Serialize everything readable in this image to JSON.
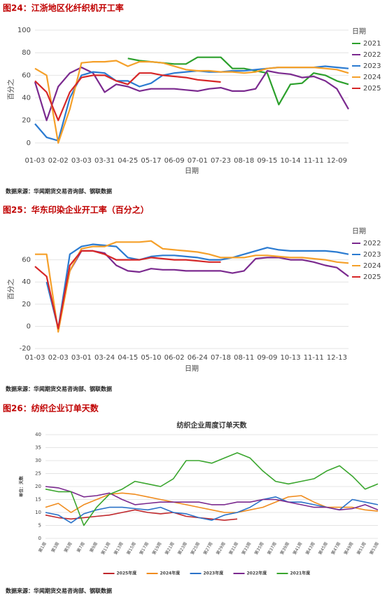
{
  "chart_data": [
    {
      "type": "line",
      "title": "图24：江浙地区化纤织机开工率",
      "source": "数据来源：华闻期货交易咨询部、钢联数据",
      "xlabel": "日期",
      "ylabel": "百分之",
      "legend_title": "日期",
      "legend": "right",
      "grid": true,
      "categories": [
        "01-03",
        null,
        "02-02",
        null,
        "03-03",
        null,
        "03-31",
        null,
        "04-25",
        null,
        "05-17",
        null,
        "06-09",
        null,
        "07-01",
        null,
        "07-23",
        null,
        "08-18",
        null,
        "09-15",
        null,
        "10-14",
        null,
        "11-11",
        null,
        "12-09",
        null
      ],
      "ylim": [
        -10,
        105
      ],
      "yticks": [
        0,
        20,
        40,
        60,
        80,
        100
      ],
      "series": [
        {
          "name": "2021",
          "color": "#2ca02c",
          "values": [
            null,
            null,
            null,
            null,
            null,
            null,
            null,
            null,
            75,
            73,
            72,
            71,
            70,
            70,
            76,
            76,
            76,
            66,
            66,
            64,
            62,
            34,
            52,
            53,
            62,
            60,
            55,
            52
          ]
        },
        {
          "name": "2022",
          "color": "#7b2a8f",
          "values": [
            54,
            20,
            50,
            62,
            67,
            62,
            45,
            52,
            50,
            46,
            48,
            48,
            48,
            47,
            46,
            48,
            49,
            46,
            46,
            48,
            64,
            62,
            61,
            58,
            59,
            55,
            48,
            30
          ]
        },
        {
          "name": "2023",
          "color": "#2b7bd1",
          "values": [
            17,
            5,
            2,
            40,
            60,
            63,
            62,
            55,
            55,
            50,
            53,
            60,
            62,
            63,
            64,
            63,
            63,
            64,
            64,
            65,
            66,
            67,
            67,
            67,
            67,
            68,
            67,
            66
          ]
        },
        {
          "name": "2024",
          "color": "#f5a02a",
          "values": [
            66,
            60,
            0,
            30,
            71,
            72,
            72,
            73,
            68,
            72,
            72,
            71,
            68,
            65,
            64,
            64,
            63,
            63,
            62,
            63,
            66,
            67,
            67,
            67,
            67,
            66,
            65,
            62
          ]
        },
        {
          "name": "2025",
          "color": "#d62728",
          "values": [
            55,
            45,
            20,
            45,
            58,
            60,
            60,
            55,
            52,
            62,
            62,
            60,
            59,
            58,
            56,
            55,
            54,
            null,
            null,
            null,
            null,
            null,
            null,
            null,
            null,
            null,
            null,
            null
          ]
        }
      ]
    },
    {
      "type": "line",
      "title": "图25：华东印染企业开工率（百分之）",
      "source": "数据来源：华闻期货交易咨询部、钢联数据",
      "xlabel": "日期",
      "ylabel": "百分之",
      "legend_title": "日期",
      "legend": "right",
      "grid": true,
      "categories": [
        "01-03",
        null,
        "02-03",
        null,
        "03-01",
        null,
        "03-24",
        null,
        "04-15",
        null,
        "05-10",
        null,
        "06-02",
        null,
        "06-24",
        null,
        "07-18",
        null,
        "08-11",
        null,
        "09-09",
        null,
        "10-13",
        null,
        "11-11",
        null,
        "12-13",
        null
      ],
      "ylim": [
        -25,
        92
      ],
      "yticks": [
        -20,
        0,
        20,
        40,
        60
      ],
      "series": [
        {
          "name": "2022",
          "color": "#7b2a8f",
          "values": [
            null,
            null,
            -2,
            50,
            68,
            68,
            66,
            55,
            50,
            49,
            52,
            51,
            51,
            50,
            50,
            50,
            50,
            48,
            50,
            61,
            62,
            62,
            60,
            60,
            58,
            55,
            53,
            45
          ]
        },
        {
          "name": "2023",
          "color": "#2b7bd1",
          "values": [
            null,
            40,
            -2,
            65,
            72,
            74,
            73,
            72,
            62,
            60,
            63,
            64,
            64,
            63,
            62,
            60,
            60,
            62,
            65,
            68,
            71,
            69,
            68,
            68,
            68,
            68,
            67,
            65
          ]
        },
        {
          "name": "2024",
          "color": "#f5a02a",
          "values": [
            65,
            65,
            -5,
            50,
            70,
            72,
            72,
            76,
            76,
            76,
            77,
            70,
            69,
            68,
            67,
            65,
            62,
            62,
            62,
            64,
            64,
            63,
            62,
            62,
            61,
            60,
            58,
            57
          ]
        },
        {
          "name": "2025",
          "color": "#d62728",
          "values": [
            54,
            45,
            -2,
            55,
            68,
            68,
            65,
            60,
            60,
            60,
            62,
            61,
            60,
            60,
            59,
            58,
            58,
            null,
            null,
            null,
            null,
            null,
            null,
            null,
            null,
            null,
            null,
            null
          ]
        }
      ]
    },
    {
      "type": "line",
      "title": "图26：纺织企业订单天数",
      "source": "数据来源：华闻期货交易咨询部、钢联数据",
      "chart_title": "纺织企业周度订单天数",
      "ylabel": "单位：天数",
      "legend": "bottom",
      "grid": true,
      "categories": [
        "第1周",
        "第3周",
        "第5周",
        "第7周",
        "第9周",
        "第11周",
        "第13周",
        "第15周",
        "第17周",
        "第19周",
        "第21周",
        "第23周",
        "第25周",
        "第27周",
        "第29周",
        "第31周",
        "第33周",
        "第35周",
        "第37周",
        "第39周",
        "第41周",
        "第43周",
        "第45周",
        "第47周",
        "第49周",
        "第51周",
        "第53周"
      ],
      "ylim": [
        0,
        40
      ],
      "yticks": [
        0,
        5,
        10,
        15,
        20,
        25,
        30,
        35,
        40
      ],
      "series": [
        {
          "name": "2025年度",
          "color": "#c0282d",
          "values": [
            9,
            8,
            7.5,
            8,
            8.5,
            9,
            10,
            11,
            10,
            9.5,
            10,
            8.5,
            8,
            7.5,
            7,
            7.5,
            null,
            null,
            null,
            null,
            null,
            null,
            null,
            null,
            null,
            null,
            null
          ]
        },
        {
          "name": "2024年度",
          "color": "#f08c1e",
          "values": [
            12,
            13.5,
            10,
            13,
            15,
            17,
            17.5,
            17,
            16,
            15,
            14,
            13,
            12,
            11,
            10,
            10,
            11,
            12,
            14,
            16,
            16.5,
            14,
            12,
            12,
            12,
            11,
            10.5
          ]
        },
        {
          "name": "2023年度",
          "color": "#2b72c8",
          "values": [
            10,
            9,
            6,
            9.5,
            11,
            12,
            12,
            11.5,
            11,
            12,
            10,
            9.5,
            8,
            7,
            9,
            10,
            12,
            15,
            16,
            14,
            14,
            13,
            12,
            11,
            15,
            14,
            13
          ]
        },
        {
          "name": "2022年度",
          "color": "#7b2a8f",
          "values": [
            20,
            19.5,
            18,
            16,
            16.5,
            17.5,
            15,
            13,
            13.5,
            14,
            14,
            14,
            14,
            13,
            13,
            14,
            14,
            15,
            15,
            14,
            13,
            12,
            12,
            11,
            11.5,
            13,
            11
          ]
        },
        {
          "name": "2021年度",
          "color": "#3aa62e",
          "values": [
            19,
            18,
            18,
            5,
            12,
            17,
            19,
            22,
            21,
            20,
            23,
            30,
            30,
            29,
            31,
            33,
            31,
            26,
            22,
            21,
            22,
            23,
            26,
            28,
            24,
            19,
            21
          ]
        }
      ]
    }
  ]
}
